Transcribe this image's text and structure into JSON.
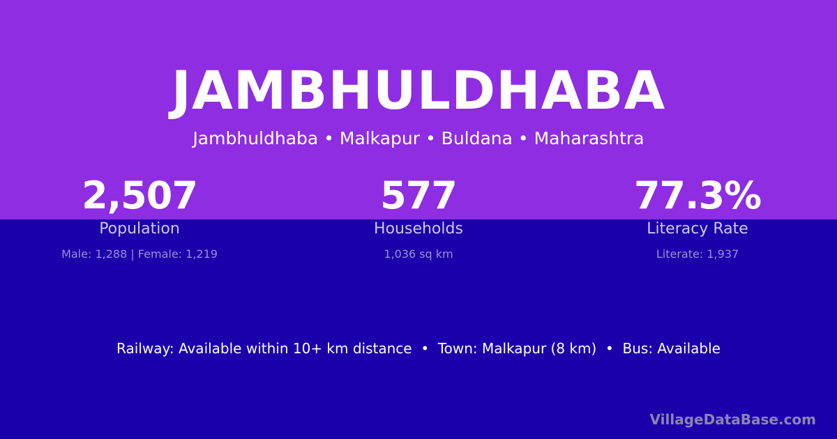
{
  "colors": {
    "top_band": "#8e2de2",
    "bottom_band": "#1a00aa"
  },
  "title": "JAMBHULDHABA",
  "subtitle": "Jambhuldhaba • Malkapur • Buldana • Maharashtra",
  "stats": [
    {
      "value": "2,507",
      "label": "Population",
      "detail": "Male: 1,288 | Female: 1,219"
    },
    {
      "value": "577",
      "label": "Households",
      "detail": "1,036 sq km"
    },
    {
      "value": "77.3%",
      "label": "Literacy Rate",
      "detail": "Literate: 1,937"
    }
  ],
  "info": "Railway: Available within 10+ km distance  •  Town: Malkapur (8 km)  •  Bus: Available",
  "brand": "VillageDataBase.com"
}
